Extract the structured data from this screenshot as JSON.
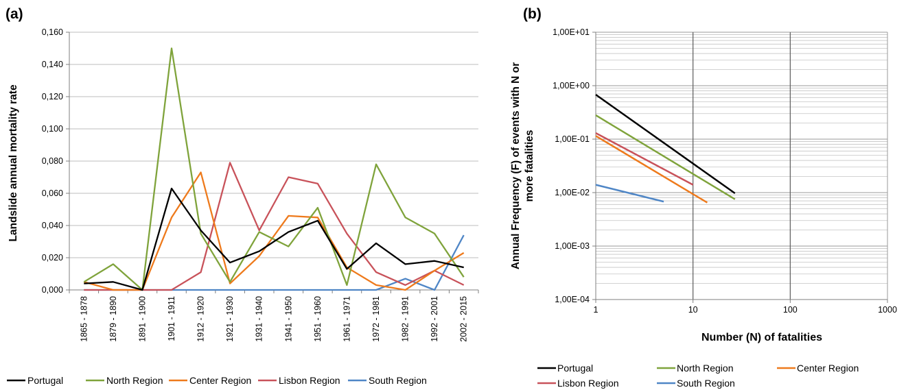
{
  "colors": {
    "portugal": "#000000",
    "north": "#7fa33b",
    "center": "#ee7a1c",
    "lisbon": "#c8525a",
    "south": "#4f86c6",
    "grid": "#bdbdbd",
    "axis": "#7f7f7f"
  },
  "chart_data": [
    {
      "type": "line",
      "panel_label": "(a)",
      "title": "",
      "xlabel": "",
      "ylabel": "Landslide annual mortality rate",
      "ylim": [
        0,
        0.16
      ],
      "yticks": [
        "0,000",
        "0,020",
        "0,040",
        "0,060",
        "0,080",
        "0,100",
        "0,120",
        "0,140",
        "0,160"
      ],
      "grid": "horizontal",
      "legend_position": "bottom",
      "categories": [
        "1865 - 1878",
        "1879 - 1890",
        "1891 - 1900",
        "1901 - 1911",
        "1912 - 1920",
        "1921 - 1930",
        "1931 - 1940",
        "1941 - 1950",
        "1951 - 1960",
        "1961 - 1971",
        "1972 - 1981",
        "1982 - 1991",
        "1992 - 2001",
        "2002 - 2015"
      ],
      "series": [
        {
          "name": "Portugal",
          "color_key": "portugal",
          "values": [
            0.004,
            0.005,
            0.0,
            0.063,
            0.037,
            0.017,
            0.024,
            0.036,
            0.043,
            0.013,
            0.029,
            0.016,
            0.018,
            0.014
          ]
        },
        {
          "name": "North Region",
          "color_key": "north",
          "values": [
            0.005,
            0.016,
            0.0,
            0.15,
            0.035,
            0.005,
            0.036,
            0.027,
            0.051,
            0.003,
            0.078,
            0.045,
            0.035,
            0.008
          ]
        },
        {
          "name": "Center Region",
          "color_key": "center",
          "values": [
            0.005,
            0.0,
            0.0,
            0.045,
            0.073,
            0.004,
            0.021,
            0.046,
            0.045,
            0.014,
            0.003,
            0.0,
            0.012,
            0.023
          ]
        },
        {
          "name": "Lisbon Region",
          "color_key": "lisbon",
          "values": [
            0.0,
            0.0,
            0.0,
            0.0,
            0.011,
            0.079,
            0.037,
            0.07,
            0.066,
            0.035,
            0.011,
            0.003,
            0.012,
            0.003
          ]
        },
        {
          "name": "South Region",
          "color_key": "south",
          "values": [
            0.0,
            0.0,
            0.0,
            0.0,
            0.0,
            0.0,
            0.0,
            0.0,
            0.0,
            0.0,
            0.0,
            0.007,
            0.0,
            0.034
          ]
        }
      ]
    },
    {
      "type": "line",
      "panel_label": "(b)",
      "title": "",
      "xlabel": "Number (N) of fatalities",
      "ylabel": "Annual Frequency (F) of events with N or more fatalities",
      "xscale": "log",
      "yscale": "log",
      "xlim": [
        1,
        1000
      ],
      "ylim": [
        0.0001,
        10
      ],
      "xticks": [
        "1",
        "10",
        "100",
        "1000"
      ],
      "yticks": [
        "1,00E-04",
        "1,00E-03",
        "1,00E-02",
        "1,00E-01",
        "1,00E+00",
        "1,00E+01"
      ],
      "grid": "log minor horizontal, major vertical",
      "legend_position": "bottom",
      "series": [
        {
          "name": "Portugal",
          "color_key": "portugal",
          "x": [
            1,
            27
          ],
          "y": [
            0.68,
            0.0097
          ]
        },
        {
          "name": "North Region",
          "color_key": "north",
          "x": [
            1,
            27
          ],
          "y": [
            0.28,
            0.0075
          ]
        },
        {
          "name": "Center Region",
          "color_key": "center",
          "x": [
            1,
            14
          ],
          "y": [
            0.115,
            0.0065
          ]
        },
        {
          "name": "Lisbon Region",
          "color_key": "lisbon",
          "x": [
            1,
            10
          ],
          "y": [
            0.13,
            0.014
          ]
        },
        {
          "name": "South Region",
          "color_key": "south",
          "x": [
            1,
            5
          ],
          "y": [
            0.014,
            0.0068
          ]
        }
      ]
    }
  ]
}
